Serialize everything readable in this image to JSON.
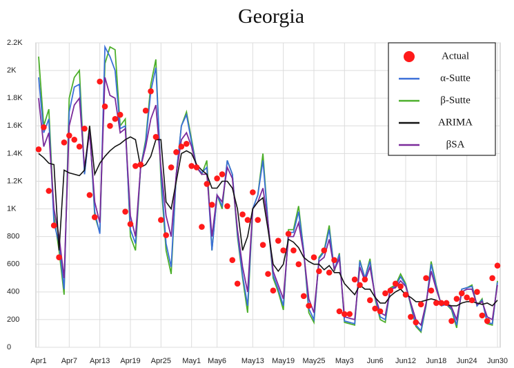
{
  "chart_data": {
    "type": "line",
    "title": "Georgia",
    "categories": [
      "Apr1",
      null,
      null,
      null,
      null,
      null,
      "Apr7",
      null,
      null,
      null,
      null,
      null,
      "Apr13",
      null,
      null,
      null,
      null,
      null,
      "Apr19",
      null,
      null,
      null,
      null,
      null,
      "Apr25",
      null,
      null,
      null,
      null,
      null,
      "May1",
      null,
      null,
      null,
      null,
      "May6",
      null,
      null,
      null,
      null,
      null,
      null,
      "May13",
      null,
      null,
      null,
      null,
      null,
      "May19",
      null,
      null,
      null,
      null,
      null,
      "May25",
      null,
      null,
      null,
      null,
      null,
      "May3",
      null,
      null,
      null,
      null,
      null,
      "Jun6",
      null,
      null,
      null,
      null,
      null,
      "Jun12",
      null,
      null,
      null,
      null,
      null,
      "Jun18",
      null,
      null,
      null,
      null,
      null,
      "Jun24",
      null,
      null,
      null,
      null,
      null,
      "Jun30"
    ],
    "series": [
      {
        "name": "Actual",
        "color": "#ff1a1a",
        "mode": "markers",
        "values": [
          1430,
          1590,
          1130,
          880,
          650,
          1480,
          1530,
          1500,
          1450,
          1580,
          1100,
          940,
          1920,
          1740,
          1600,
          1650,
          1680,
          980,
          890,
          1310,
          1320,
          1710,
          1850,
          1520,
          920,
          810,
          1300,
          1410,
          1450,
          1470,
          1310,
          1300,
          870,
          1180,
          1030,
          1220,
          1250,
          1020,
          630,
          460,
          960,
          920,
          1120,
          920,
          740,
          530,
          410,
          770,
          700,
          820,
          700,
          600,
          370,
          300,
          650,
          550,
          700,
          540,
          630,
          260,
          240,
          240,
          490,
          450,
          490,
          340,
          280,
          260,
          390,
          410,
          460,
          440,
          380,
          220,
          180,
          310,
          500,
          410,
          320,
          320,
          320,
          190,
          350,
          390,
          360,
          340,
          400,
          230,
          190,
          500,
          590
        ]
      },
      {
        "name": "α-Sutte",
        "color": "#3a6fd8",
        "mode": "lines",
        "values": [
          1950,
          1550,
          1650,
          900,
          750,
          420,
          1700,
          1880,
          1900,
          1250,
          1580,
          980,
          820,
          2170,
          2100,
          2000,
          1580,
          1600,
          850,
          750,
          1300,
          1480,
          1850,
          2020,
          1250,
          750,
          580,
          1250,
          1600,
          1680,
          1480,
          1300,
          1260,
          1300,
          700,
          1100,
          1020,
          1350,
          1250,
          820,
          520,
          300,
          1000,
          1100,
          1350,
          900,
          520,
          420,
          300,
          830,
          830,
          980,
          700,
          280,
          200,
          640,
          690,
          850,
          560,
          670,
          190,
          180,
          170,
          620,
          500,
          620,
          360,
          220,
          200,
          420,
          440,
          510,
          450,
          310,
          160,
          120,
          310,
          600,
          440,
          300,
          310,
          280,
          160,
          420,
          430,
          440,
          300,
          340,
          180,
          170,
          470
        ]
      },
      {
        "name": "β-Sutte",
        "color": "#4caf2a",
        "mode": "lines",
        "values": [
          2100,
          1600,
          1720,
          950,
          700,
          380,
          1800,
          1950,
          2000,
          1250,
          1600,
          950,
          830,
          2050,
          2170,
          2150,
          1600,
          1650,
          800,
          700,
          1300,
          1500,
          1900,
          2080,
          1200,
          700,
          530,
          1250,
          1600,
          1700,
          1500,
          1300,
          1250,
          1350,
          700,
          1100,
          1000,
          1350,
          1250,
          800,
          500,
          250,
          1000,
          1100,
          1400,
          900,
          500,
          400,
          270,
          850,
          850,
          1020,
          700,
          250,
          180,
          650,
          700,
          880,
          550,
          680,
          180,
          170,
          160,
          630,
          500,
          640,
          350,
          200,
          180,
          430,
          450,
          530,
          460,
          300,
          150,
          110,
          300,
          620,
          450,
          300,
          310,
          270,
          140,
          420,
          430,
          450,
          300,
          350,
          170,
          160,
          480
        ]
      },
      {
        "name": "ARIMA",
        "color": "#111111",
        "mode": "lines",
        "values": [
          1400,
          1370,
          1330,
          1320,
          700,
          1280,
          1260,
          1250,
          1240,
          1280,
          1600,
          1250,
          1330,
          1380,
          1420,
          1450,
          1470,
          1500,
          1520,
          1500,
          1300,
          1320,
          1380,
          1500,
          1500,
          1050,
          1000,
          1200,
          1400,
          1420,
          1400,
          1320,
          1280,
          1250,
          1150,
          1150,
          1200,
          1200,
          1150,
          1000,
          700,
          800,
          1000,
          1050,
          1080,
          850,
          600,
          550,
          600,
          780,
          760,
          720,
          650,
          620,
          600,
          600,
          560,
          590,
          540,
          540,
          460,
          420,
          380,
          450,
          420,
          420,
          360,
          320,
          320,
          370,
          400,
          420,
          380,
          360,
          330,
          330,
          340,
          350,
          340,
          320,
          310,
          300,
          300,
          320,
          330,
          330,
          320,
          310,
          320,
          300,
          340
        ]
      },
      {
        "name": "βSA",
        "color": "#7a2a9a",
        "mode": "lines",
        "values": [
          1800,
          1450,
          1550,
          1000,
          800,
          500,
          1600,
          1750,
          1800,
          1300,
          1550,
          1050,
          900,
          1950,
          1820,
          1800,
          1550,
          1580,
          950,
          800,
          1300,
          1450,
          1650,
          1750,
          1300,
          950,
          800,
          1250,
          1500,
          1550,
          1450,
          1300,
          1250,
          1250,
          800,
          1100,
          1050,
          1300,
          1220,
          850,
          580,
          400,
          1000,
          1050,
          1150,
          900,
          550,
          450,
          350,
          800,
          800,
          900,
          680,
          350,
          250,
          620,
          650,
          780,
          560,
          640,
          220,
          210,
          200,
          580,
          480,
          580,
          370,
          250,
          230,
          420,
          430,
          480,
          440,
          320,
          200,
          160,
          320,
          550,
          420,
          310,
          310,
          290,
          200,
          400,
          420,
          420,
          310,
          330,
          220,
          200,
          450
        ]
      }
    ],
    "ylim": [
      0,
      2200
    ],
    "yticks": [
      0,
      200,
      400,
      600,
      800,
      {
        "value": 1000,
        "label": "1K"
      },
      {
        "value": 1200,
        "label": "1.2K"
      },
      {
        "value": 1400,
        "label": "1.4K"
      },
      {
        "value": 1600,
        "label": "1.6K"
      },
      {
        "value": 1800,
        "label": "1.8K"
      },
      {
        "value": 2000,
        "label": "2K"
      },
      {
        "value": 2200,
        "label": "2.2K"
      }
    ],
    "grid": true,
    "legend": "upper right"
  }
}
